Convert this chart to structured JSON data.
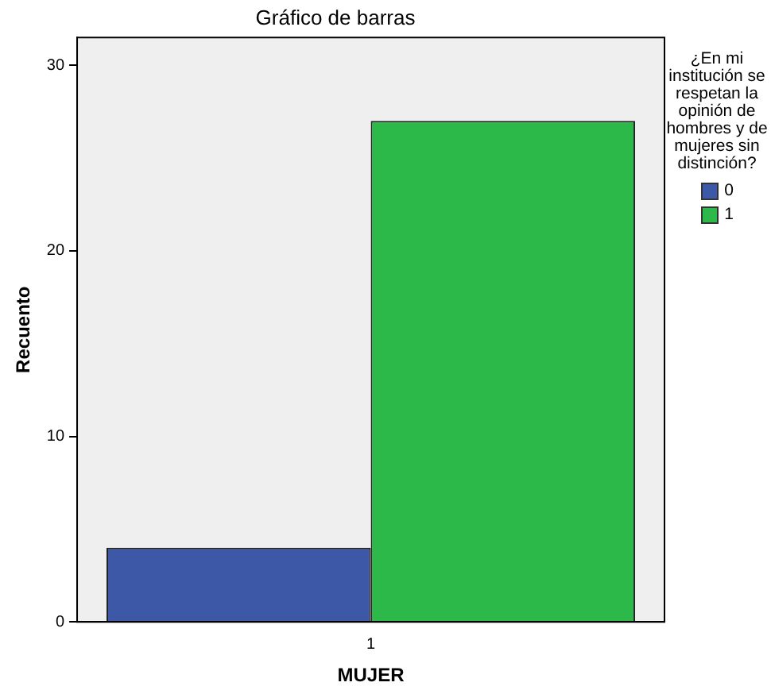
{
  "chart_data": {
    "type": "bar",
    "title": "Gráfico de barras",
    "xlabel": "MUJER",
    "ylabel": "Recuento",
    "legend_title": "¿En mi institución se respetan la opinión de hombres y de mujeres sin distinción?",
    "categories": [
      "1"
    ],
    "series": [
      {
        "name": "0",
        "color": "#3e58a8",
        "values": [
          4
        ]
      },
      {
        "name": "1",
        "color": "#2db84a",
        "values": [
          27
        ]
      }
    ],
    "ylim": [
      0,
      31.5
    ],
    "yticks": [
      0,
      10,
      20,
      30
    ],
    "grid": false,
    "legend": "right"
  }
}
